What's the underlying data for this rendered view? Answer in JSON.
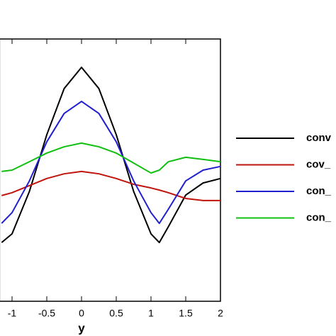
{
  "chart_data": {
    "type": "line",
    "x_label": "y",
    "x": [
      -1.15,
      -1,
      -0.75,
      -0.5,
      -0.25,
      0,
      0.25,
      0.5,
      0.75,
      1,
      1.12,
      1.25,
      1.5,
      1.75,
      2
    ],
    "series": [
      {
        "name": "conv",
        "color": "#000000",
        "values": [
          0.224,
          0.257,
          0.419,
          0.635,
          0.811,
          0.892,
          0.811,
          0.635,
          0.419,
          0.257,
          0.224,
          0.284,
          0.405,
          0.451,
          0.468
        ]
      },
      {
        "name": "cov_",
        "color": "#c0140c",
        "values": [
          0.403,
          0.414,
          0.441,
          0.468,
          0.486,
          0.495,
          0.486,
          0.468,
          0.446,
          0.432,
          0.424,
          0.414,
          0.392,
          0.384,
          0.384
        ]
      },
      {
        "name": "con_",
        "color": "#1f1fd0",
        "values": [
          0.297,
          0.338,
          0.459,
          0.608,
          0.716,
          0.762,
          0.716,
          0.608,
          0.459,
          0.338,
          0.297,
          0.351,
          0.459,
          0.5,
          0.514
        ]
      },
      {
        "name": "con_",
        "color": "#10c010",
        "values": [
          0.495,
          0.5,
          0.532,
          0.565,
          0.589,
          0.603,
          0.589,
          0.565,
          0.527,
          0.489,
          0.5,
          0.532,
          0.549,
          0.541,
          0.532
        ]
      }
    ],
    "xlim": [
      -1.18,
      2
    ],
    "xticks": [
      -1,
      -0.5,
      0,
      0.5,
      1,
      1.5,
      2
    ],
    "ylim": [
      0,
      1
    ]
  }
}
